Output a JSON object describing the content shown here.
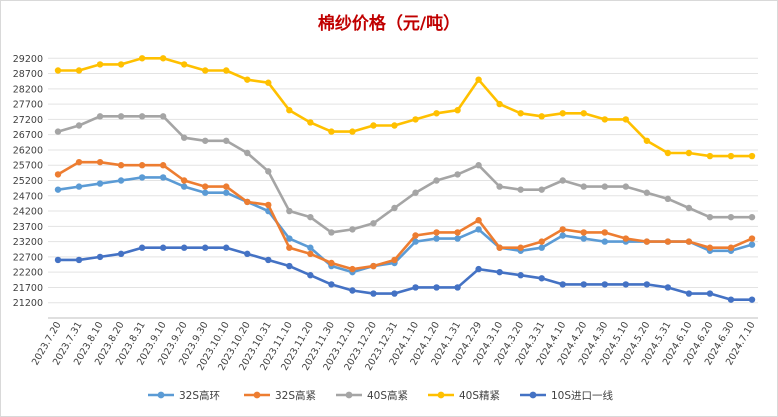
{
  "chart_data": {
    "type": "line",
    "title": "棉纱价格（元/吨）",
    "xlabel": "",
    "ylabel": "",
    "ylim": [
      20700,
      29700
    ],
    "yticks": [
      21200,
      21700,
      22200,
      22700,
      23200,
      23700,
      24200,
      24700,
      25200,
      25700,
      26200,
      26700,
      27200,
      27700,
      28200,
      28700,
      29200
    ],
    "grid": true,
    "legend": "bottom",
    "categories": [
      "2023.7.20",
      "2023.7.31",
      "2023.8.10",
      "2023.8.20",
      "2023.8.31",
      "2023.9.10",
      "2023.9.20",
      "2023.9.30",
      "2023.10.10",
      "2023.10.20",
      "2023.10.31",
      "2023.11.10",
      "2023.11.20",
      "2023.11.30",
      "2023.12.10",
      "2023.12.20",
      "2023.12.31",
      "2024.1.10",
      "2024.1.20",
      "2024.1.31",
      "2024.2.29",
      "2024.3.10",
      "2024.3.20",
      "2024.3.31",
      "2024.4.10",
      "2024.4.20",
      "2024.4.30",
      "2024.5.10",
      "2024.5.20",
      "2024.5.31",
      "2024.6.10",
      "2024.6.20",
      "2024.6.30",
      "2024.7.10"
    ],
    "series": [
      {
        "name": "32S高环",
        "color": "#5b9bd5",
        "values": [
          24900,
          25000,
          25100,
          25200,
          25300,
          25300,
          25000,
          24800,
          24800,
          24500,
          24200,
          23300,
          23000,
          22400,
          22200,
          22400,
          22500,
          23200,
          23300,
          23300,
          23600,
          23000,
          22900,
          23000,
          23400,
          23300,
          23200,
          23200,
          23200,
          23200,
          23200,
          22900,
          22900,
          23100
        ]
      },
      {
        "name": "32S高紧",
        "color": "#ed7d31",
        "values": [
          25400,
          25800,
          25800,
          25700,
          25700,
          25700,
          25200,
          25000,
          25000,
          24500,
          24400,
          23000,
          22800,
          22500,
          22300,
          22400,
          22600,
          23400,
          23500,
          23500,
          23900,
          23000,
          23000,
          23200,
          23600,
          23500,
          23500,
          23300,
          23200,
          23200,
          23200,
          23000,
          23000,
          23300
        ]
      },
      {
        "name": "40S高紧",
        "color": "#a5a5a5",
        "values": [
          26800,
          27000,
          27300,
          27300,
          27300,
          27300,
          26600,
          26500,
          26500,
          26100,
          25500,
          24200,
          24000,
          23500,
          23600,
          23800,
          24300,
          24800,
          25200,
          25400,
          25700,
          25000,
          24900,
          24900,
          25200,
          25000,
          25000,
          25000,
          24800,
          24600,
          24300,
          24000,
          24000,
          24000
        ]
      },
      {
        "name": "40S精紧",
        "color": "#ffc000",
        "values": [
          28800,
          28800,
          29000,
          29000,
          29200,
          29200,
          29000,
          28800,
          28800,
          28500,
          28400,
          27500,
          27100,
          26800,
          26800,
          27000,
          27000,
          27200,
          27400,
          27500,
          28500,
          27700,
          27400,
          27300,
          27400,
          27400,
          27200,
          27200,
          26500,
          26100,
          26100,
          26000,
          26000,
          26000
        ]
      },
      {
        "name": "10S进口一线",
        "color": "#4472c4",
        "values": [
          22600,
          22600,
          22700,
          22800,
          23000,
          23000,
          23000,
          23000,
          23000,
          22800,
          22600,
          22400,
          22100,
          21800,
          21600,
          21500,
          21500,
          21700,
          21700,
          21700,
          22300,
          22200,
          22100,
          22000,
          21800,
          21800,
          21800,
          21800,
          21800,
          21700,
          21500,
          21500,
          21300,
          21300
        ]
      }
    ]
  }
}
